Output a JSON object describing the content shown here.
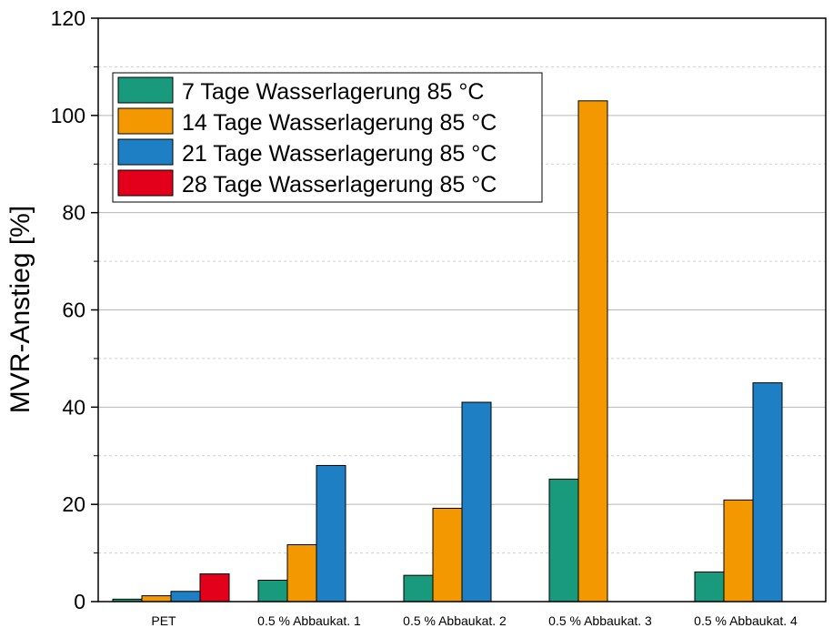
{
  "chart_data": {
    "type": "bar",
    "title": "",
    "xlabel": "",
    "ylabel": "MVR-Anstieg [%]",
    "ylim": [
      0,
      120
    ],
    "yticks": [
      0,
      20,
      40,
      60,
      80,
      100,
      120
    ],
    "grid": true,
    "legend_position": "top-left",
    "categories": [
      "PET",
      "0.5 % Abbaukat. 1",
      "0.5 % Abbaukat. 2",
      "0.5 % Abbaukat. 3",
      "0.5 % Abbaukat. 4"
    ],
    "series": [
      {
        "name": "7 Tage Wasserlagerung 85 °C",
        "color": "#1a9a7c",
        "values": [
          0.5,
          4.4,
          5.4,
          25.2,
          6.1
        ]
      },
      {
        "name": "14 Tage Wasserlagerung 85 °C",
        "color": "#f39800",
        "values": [
          1.2,
          11.7,
          19.2,
          103.0,
          20.9
        ]
      },
      {
        "name": "21 Tage Wasserlagerung 85 °C",
        "color": "#1f7fc4",
        "values": [
          2.1,
          28.0,
          41.0,
          null,
          45.0
        ]
      },
      {
        "name": "28 Tage Wasserlagerung 85 °C",
        "color": "#e3001b",
        "values": [
          5.7,
          null,
          null,
          null,
          null
        ]
      }
    ]
  }
}
